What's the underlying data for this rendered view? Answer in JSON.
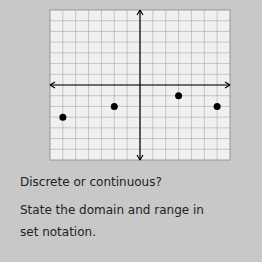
{
  "chart_data": {
    "type": "scatter",
    "x": [
      -6,
      -2,
      3,
      6
    ],
    "values": [
      -3,
      -2,
      -1,
      -2
    ],
    "color": "#000000",
    "xlim": [
      -7,
      7
    ],
    "ylim": [
      -7,
      7
    ],
    "xticks": [
      -6,
      -5,
      -4,
      -3,
      -2,
      -1,
      0,
      1,
      2,
      3,
      4,
      5,
      6
    ],
    "yticks": [
      -6,
      -5,
      -4,
      -3,
      -2,
      -1,
      0,
      1,
      2,
      3,
      4,
      5,
      6
    ],
    "grid": true,
    "tick_labels": false,
    "annotations": [
      "Discrete or continuous?",
      "State the domain and range in",
      "set notation."
    ]
  }
}
